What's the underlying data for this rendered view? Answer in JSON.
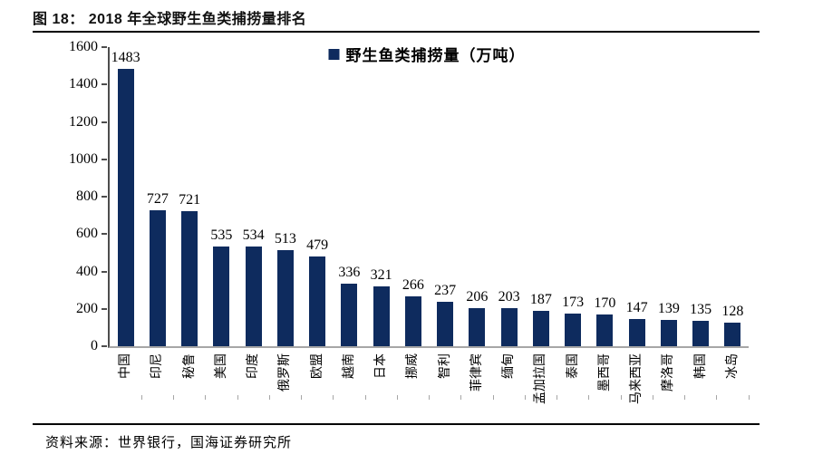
{
  "figure": {
    "title": "图 18： 2018 年全球野生鱼类捕捞量排名",
    "source": "资料来源：世界银行，国海证券研究所"
  },
  "chart_data": {
    "type": "bar",
    "title": "图 18： 2018 年全球野生鱼类捕捞量排名",
    "legend": [
      "野生鱼类捕捞量（万吨）"
    ],
    "legend_position": "top-center",
    "categories": [
      "中国",
      "印尼",
      "秘鲁",
      "美国",
      "印度",
      "俄罗斯",
      "欧盟",
      "越南",
      "日本",
      "挪威",
      "智利",
      "菲律宾",
      "缅甸",
      "孟加拉国",
      "泰国",
      "墨西哥",
      "马来西亚",
      "摩洛哥",
      "韩国",
      "冰岛"
    ],
    "values": [
      1483,
      727,
      721,
      535,
      534,
      513,
      479,
      336,
      321,
      266,
      237,
      206,
      203,
      187,
      173,
      170,
      147,
      139,
      135,
      128
    ],
    "xlabel": "",
    "ylabel": "",
    "ylim": [
      0,
      1600
    ],
    "yticks": [
      0,
      200,
      400,
      600,
      800,
      1000,
      1200,
      1400,
      1600
    ],
    "grid": false,
    "bar_color": "#0E2B5E",
    "axis_color": "#4d4d4d",
    "baseline_color": "#a6a6a6",
    "data_labels": true
  }
}
